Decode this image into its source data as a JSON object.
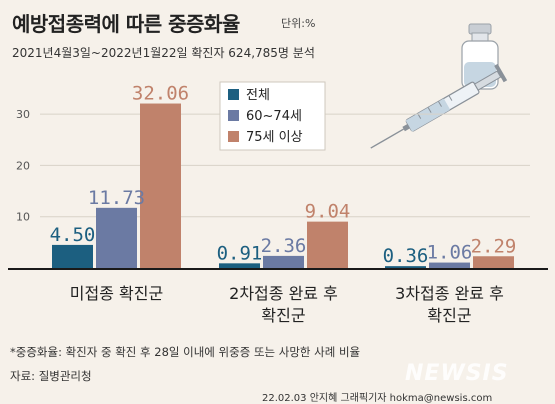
{
  "header": {
    "title": "예방접종력에 따른 중증화율",
    "unit": "단위:%",
    "subtitle": "2021년4월3일~2022년1월22일 확진자 624,785명 분석"
  },
  "chart_data": {
    "type": "bar",
    "title": "예방접종력에 따른 중증화율",
    "categories": [
      "미접종 확진군",
      "2차접종 완료 후 확진군",
      "3차접종 완료 후 확진군"
    ],
    "category_lines": [
      [
        "미접종 확진군"
      ],
      [
        "2차접종 완료 후",
        "확진군"
      ],
      [
        "3차접종 완료 후",
        "확진군"
      ]
    ],
    "series": [
      {
        "name": "전체",
        "values": [
          4.5,
          0.91,
          0.36
        ],
        "color": "#1c5f80"
      },
      {
        "name": "60~74세",
        "values": [
          11.73,
          2.36,
          1.06
        ],
        "color": "#6b7aa3"
      },
      {
        "name": "75세 이상",
        "values": [
          32.06,
          9.04,
          2.29
        ],
        "color": "#c0826b"
      }
    ],
    "value_labels": [
      [
        "4.50",
        "0.91",
        "0.36"
      ],
      [
        "11.73",
        "2.36",
        "1.06"
      ],
      [
        "32.06",
        "9.04",
        "2.29"
      ]
    ],
    "y_ticks": [
      10,
      20,
      30
    ],
    "ylim": [
      0,
      35
    ],
    "grid": true,
    "legend": "top-center"
  },
  "footer": {
    "footnote": "*중증화율: 확진자 중 확진 후 28일 이내에 위중증 또는 사망한 사례 비율",
    "source": "자료: 질병관리청",
    "credit": "22.02.03 안지혜 그래픽기자 hokma@newsis.com",
    "watermark": "NEWSIS"
  }
}
